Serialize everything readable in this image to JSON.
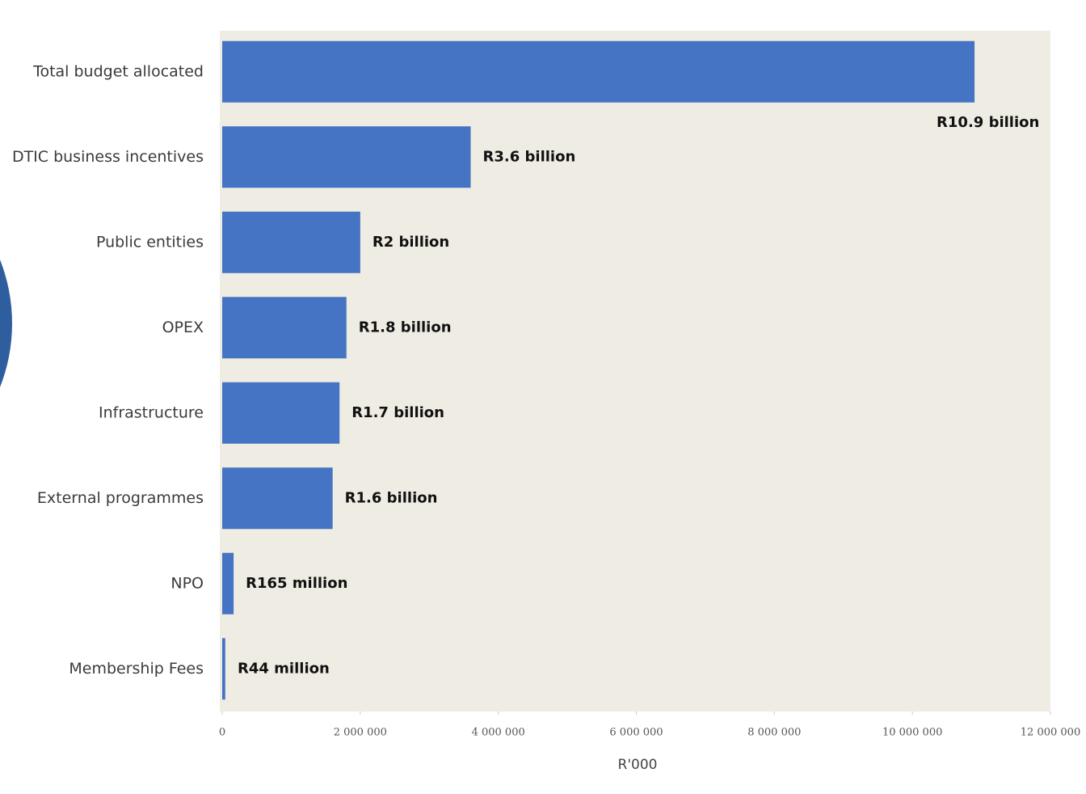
{
  "chart_data": {
    "type": "bar",
    "orientation": "horizontal",
    "x_label": "R'000",
    "categories": [
      "Total budget allocated",
      "DTIC business incentives",
      "Public entities",
      "OPEX",
      "Infrastructure",
      "External programmes",
      "NPO",
      "Membership Fees"
    ],
    "values": [
      10900000,
      3600000,
      2000000,
      1800000,
      1700000,
      1600000,
      165000,
      44000
    ],
    "value_labels": [
      "R10.9 billion",
      "R3.6 billion",
      "R2 billion",
      "R1.8 billion",
      "R1.7 billion",
      "R1.6 billion",
      "R165 million",
      "R44 million"
    ],
    "color": "#4674c4",
    "xlim": [
      0,
      12000000
    ],
    "xticks": [
      0,
      {
        "value": 2000000,
        "label": "2 000 000"
      },
      {
        "value": 4000000,
        "label": "4 000 000"
      },
      {
        "value": 6000000,
        "label": "6 000 000"
      },
      {
        "value": 8000000,
        "label": "8 000 000"
      },
      {
        "value": 10000000,
        "label": "10 000 000"
      },
      {
        "value": 12000000,
        "label": "12 000 000"
      }
    ]
  }
}
